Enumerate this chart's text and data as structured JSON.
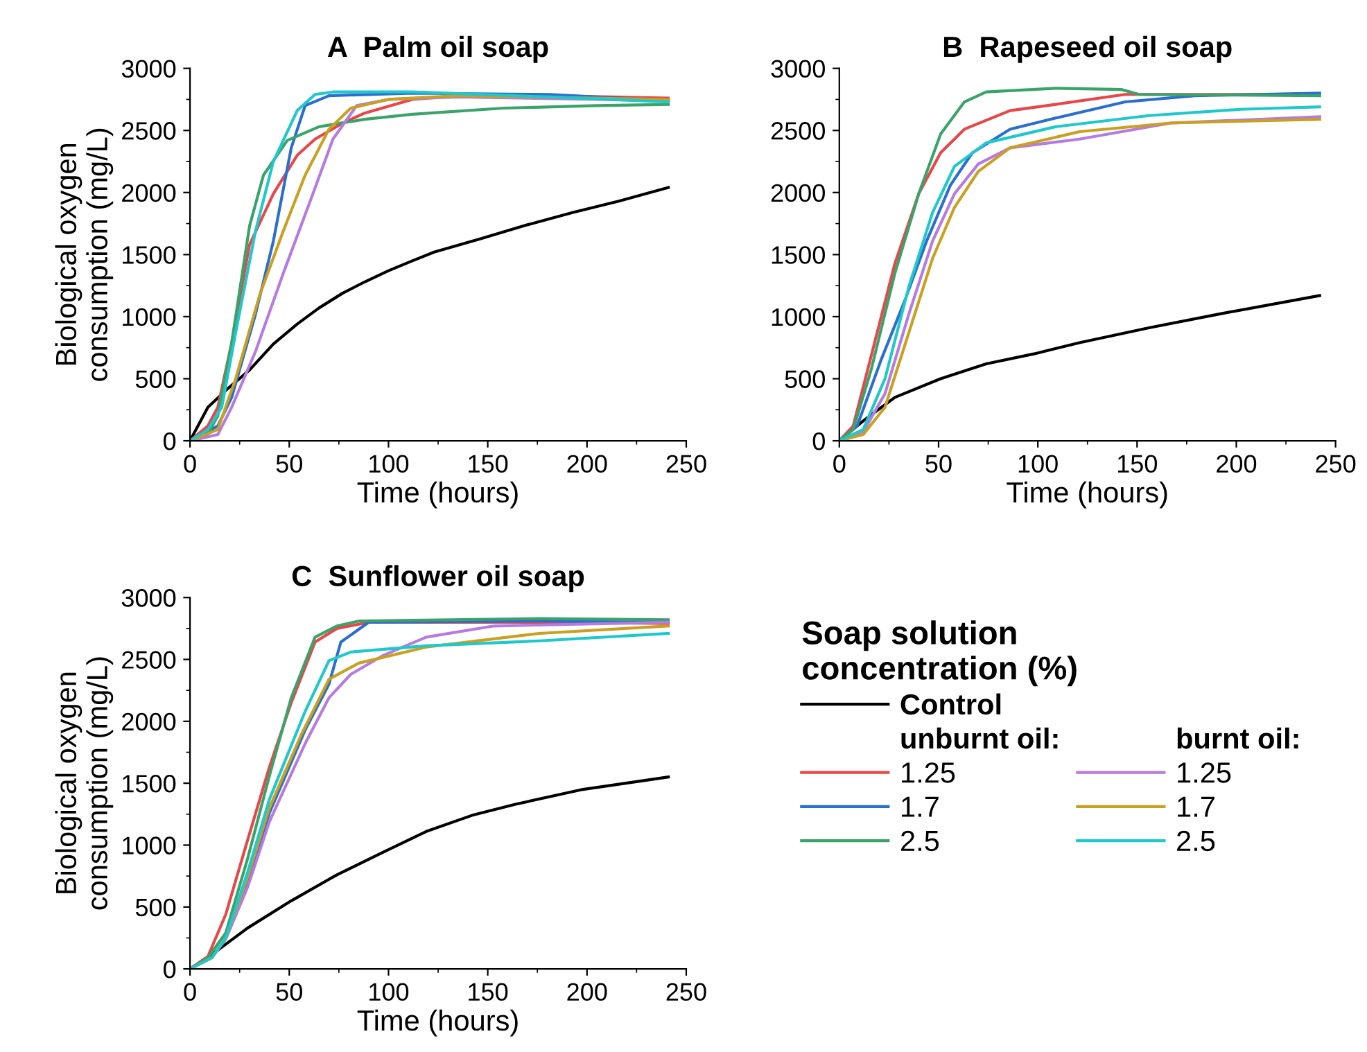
{
  "chart_data": [
    {
      "type": "line",
      "title": "A  Palm oil soap",
      "xlabel": "Time (hours)",
      "ylabel": "Biological oxygen\nconsumption (mg/L)",
      "xlim": [
        0,
        250
      ],
      "ylim": [
        0,
        3000
      ],
      "xticks": [
        0,
        50,
        100,
        150,
        200,
        250
      ],
      "yticks": [
        0,
        500,
        1000,
        1500,
        2000,
        2500,
        3000
      ],
      "grid": false,
      "legend": false,
      "line_style": "solid",
      "marker": "none",
      "series": [
        {
          "color": "#000000",
          "x": [
            0,
            9,
            19,
            30,
            42,
            54,
            65,
            77,
            88,
            100,
            112,
            123,
            147,
            170,
            193,
            216,
            241
          ],
          "values": [
            0,
            270,
            420,
            570,
            780,
            940,
            1070,
            1190,
            1280,
            1370,
            1450,
            1520,
            1630,
            1740,
            1840,
            1930,
            2040
          ]
        },
        {
          "color": "#e8474a",
          "x": [
            0,
            9,
            14,
            21,
            30,
            42,
            54,
            63,
            77,
            88,
            112,
            135,
            181,
            241
          ],
          "values": [
            0,
            120,
            270,
            790,
            1580,
            1990,
            2300,
            2430,
            2560,
            2640,
            2750,
            2780,
            2780,
            2760
          ]
        },
        {
          "color": "#2a6fce",
          "x": [
            0,
            14,
            21,
            33,
            42,
            51,
            58,
            70,
            112,
            181,
            241
          ],
          "values": [
            0,
            120,
            350,
            1020,
            1610,
            2360,
            2700,
            2780,
            2800,
            2790,
            2740
          ]
        },
        {
          "color": "#3aa36a",
          "x": [
            0,
            8,
            14,
            21,
            30,
            37,
            49,
            65,
            88,
            112,
            158,
            205,
            241
          ],
          "values": [
            0,
            30,
            200,
            790,
            1730,
            2140,
            2420,
            2530,
            2590,
            2630,
            2680,
            2700,
            2710
          ]
        },
        {
          "color": "#b57be0",
          "x": [
            0,
            14,
            21,
            33,
            47,
            61,
            72,
            84,
            100,
            135,
            241
          ],
          "values": [
            0,
            50,
            270,
            720,
            1350,
            1950,
            2430,
            2700,
            2750,
            2770,
            2740
          ]
        },
        {
          "color": "#c9a020",
          "x": [
            0,
            14,
            23,
            35,
            47,
            58,
            70,
            81,
            100,
            135,
            241
          ],
          "values": [
            0,
            90,
            500,
            1170,
            1690,
            2140,
            2510,
            2680,
            2750,
            2780,
            2750
          ]
        },
        {
          "color": "#1fc8cc",
          "x": [
            0,
            9,
            16,
            23,
            33,
            42,
            54,
            63,
            72,
            112,
            181,
            241
          ],
          "values": [
            0,
            90,
            270,
            870,
            1690,
            2250,
            2660,
            2790,
            2810,
            2810,
            2770,
            2730
          ]
        }
      ]
    },
    {
      "type": "line",
      "title": "B  Rapeseed oil soap",
      "xlabel": "Time (hours)",
      "xlim": [
        0,
        250
      ],
      "ylim": [
        0,
        3000
      ],
      "xticks": [
        0,
        50,
        100,
        150,
        200,
        250
      ],
      "yticks": [
        0,
        500,
        1000,
        1500,
        2000,
        2500,
        3000
      ],
      "grid": false,
      "legend": false,
      "line_style": "solid",
      "marker": "none",
      "series": [
        {
          "color": "#000000",
          "x": [
            0,
            12,
            28,
            51,
            74,
            98,
            121,
            156,
            191,
            242
          ],
          "values": [
            0,
            160,
            350,
            500,
            620,
            700,
            790,
            910,
            1020,
            1170
          ]
        },
        {
          "color": "#e8474a",
          "x": [
            0,
            7,
            16,
            28,
            40,
            51,
            63,
            86,
            109,
            144,
            242
          ],
          "values": [
            0,
            120,
            680,
            1430,
            1990,
            2320,
            2510,
            2660,
            2710,
            2790,
            2790
          ]
        },
        {
          "color": "#2a6fce",
          "x": [
            0,
            9,
            21,
            33,
            44,
            56,
            67,
            86,
            109,
            144,
            179,
            242
          ],
          "values": [
            0,
            120,
            650,
            1130,
            1610,
            2060,
            2320,
            2510,
            2600,
            2730,
            2780,
            2800
          ]
        },
        {
          "color": "#3aa36a",
          "x": [
            0,
            7,
            16,
            28,
            40,
            51,
            63,
            74,
            109,
            142,
            151,
            242
          ],
          "values": [
            0,
            90,
            570,
            1350,
            1990,
            2470,
            2730,
            2810,
            2840,
            2830,
            2790,
            2780
          ]
        },
        {
          "color": "#b57be0",
          "x": [
            0,
            12,
            23,
            35,
            47,
            58,
            70,
            86,
            121,
            167,
            242
          ],
          "values": [
            0,
            70,
            380,
            1020,
            1610,
            1990,
            2230,
            2360,
            2430,
            2560,
            2610
          ]
        },
        {
          "color": "#c9a020",
          "x": [
            0,
            12,
            23,
            35,
            47,
            58,
            70,
            86,
            121,
            167,
            242
          ],
          "values": [
            0,
            50,
            270,
            870,
            1470,
            1880,
            2170,
            2360,
            2490,
            2560,
            2590
          ]
        },
        {
          "color": "#1fc8cc",
          "x": [
            0,
            12,
            23,
            35,
            47,
            58,
            74,
            109,
            156,
            202,
            242
          ],
          "values": [
            0,
            90,
            500,
            1240,
            1840,
            2210,
            2400,
            2530,
            2620,
            2670,
            2690
          ]
        }
      ]
    },
    {
      "type": "line",
      "title": "C  Sunflower oil soap",
      "xlabel": "Time (hours)",
      "ylabel": "Biological oxygen\nconsumption (mg/L)",
      "xlim": [
        0,
        250
      ],
      "ylim": [
        0,
        3000
      ],
      "xticks": [
        0,
        50,
        100,
        150,
        200,
        250
      ],
      "yticks": [
        0,
        500,
        1000,
        1500,
        2000,
        2500,
        3000
      ],
      "grid": false,
      "legend": "right",
      "legend_title": "Soap solution\nconcentration (%)",
      "annotations": [
        "unburnt oil:",
        "burnt oil:"
      ],
      "line_style": "solid",
      "marker": "none",
      "series": [
        {
          "name": "Control",
          "color": "#000000",
          "x": [
            0,
            13,
            29,
            51,
            74,
            97,
            119,
            142,
            164,
            198,
            241
          ],
          "values": [
            0,
            140,
            330,
            550,
            760,
            940,
            1110,
            1240,
            1330,
            1450,
            1550
          ]
        },
        {
          "name": "1.25",
          "color": "#e8474a",
          "x": [
            0,
            9,
            18,
            29,
            40,
            51,
            63,
            74,
            90,
            176,
            241
          ],
          "values": [
            0,
            100,
            440,
            1040,
            1630,
            2150,
            2640,
            2750,
            2800,
            2800,
            2790
          ]
        },
        {
          "name": "1.7",
          "color": "#2a6fce",
          "x": [
            18,
            29,
            40,
            58,
            70,
            76,
            90,
            176,
            241
          ],
          "values": [
            250,
            700,
            1260,
            1930,
            2300,
            2640,
            2800,
            2810,
            2800
          ]
        },
        {
          "name": "2.5",
          "color": "#3aa36a",
          "x": [
            0,
            9,
            18,
            29,
            40,
            51,
            63,
            74,
            85,
            176,
            241
          ],
          "values": [
            0,
            90,
            290,
            890,
            1560,
            2190,
            2680,
            2770,
            2810,
            2830,
            2820
          ]
        },
        {
          "name": "1.25",
          "color": "#b57be0",
          "x": [
            0,
            11,
            18,
            29,
            40,
            58,
            70,
            81,
            97,
            119,
            153,
            241
          ],
          "values": [
            0,
            90,
            240,
            660,
            1190,
            1820,
            2190,
            2380,
            2530,
            2680,
            2770,
            2800
          ]
        },
        {
          "name": "1.7",
          "color": "#c9a020",
          "x": [
            0,
            11,
            18,
            29,
            40,
            56,
            70,
            85,
            119,
            176,
            241
          ],
          "values": [
            0,
            90,
            250,
            740,
            1300,
            1890,
            2340,
            2470,
            2600,
            2710,
            2770
          ]
        },
        {
          "name": "2.5",
          "color": "#1fc8cc",
          "x": [
            0,
            11,
            18,
            29,
            40,
            58,
            70,
            81,
            119,
            176,
            241
          ],
          "values": [
            0,
            90,
            250,
            780,
            1370,
            2080,
            2490,
            2560,
            2610,
            2650,
            2710
          ]
        }
      ]
    }
  ]
}
